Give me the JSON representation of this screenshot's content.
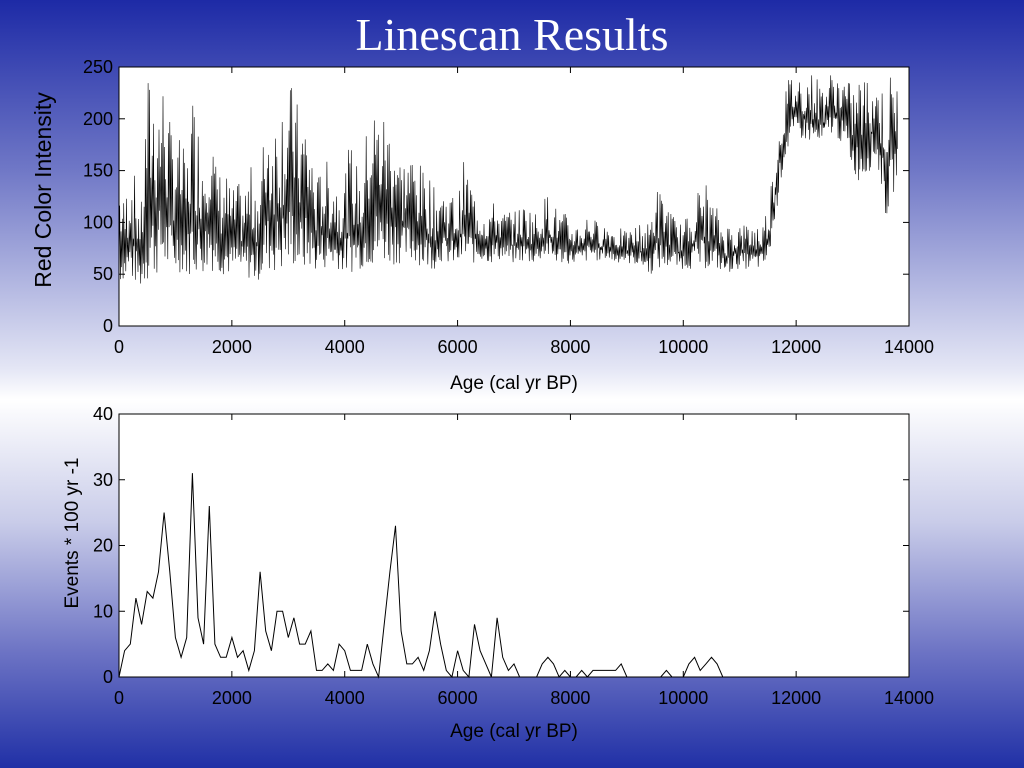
{
  "slide": {
    "title": "Linescan Results"
  },
  "chart_data": [
    {
      "type": "line",
      "title": "",
      "xlabel": "Age (cal yr BP)",
      "ylabel": "Red Color Intensity",
      "xlim": [
        0,
        14000
      ],
      "ylim": [
        0,
        250
      ],
      "xticks": [
        0,
        2000,
        4000,
        6000,
        8000,
        10000,
        12000,
        14000
      ],
      "yticks": [
        0,
        50,
        100,
        150,
        200,
        250
      ],
      "grid": false,
      "legend": "none",
      "line_color": "#000000",
      "series": [
        {
          "x": [
            0,
            100,
            200,
            300,
            400,
            500,
            600,
            700,
            800,
            900,
            1000,
            1100,
            1200,
            1300,
            1400,
            1500,
            1600,
            1700,
            1800,
            1900,
            2000,
            2100,
            2200,
            2300,
            2400,
            2500,
            2600,
            2700,
            2800,
            2900,
            3000,
            3100,
            3200,
            3300,
            3400,
            3500,
            3600,
            3700,
            3800,
            3900,
            4000,
            4100,
            4200,
            4300,
            4400,
            4500,
            4600,
            4700,
            4800,
            4900,
            5000,
            5100,
            5200,
            5300,
            5400,
            5500,
            5600,
            5700,
            5800,
            5900,
            6000,
            6100,
            6200,
            6300,
            6400,
            6500,
            6600,
            6700,
            6800,
            6900,
            7000,
            7100,
            7200,
            7300,
            7400,
            7500,
            7600,
            7700,
            7800,
            7900,
            8000,
            8100,
            8200,
            8300,
            8400,
            8500,
            8600,
            8700,
            8800,
            8900,
            9000,
            9100,
            9200,
            9300,
            9400,
            9500,
            9600,
            9700,
            9800,
            9900,
            10000,
            10100,
            10200,
            10300,
            10400,
            10500,
            10600,
            10700,
            10800,
            10900,
            11000,
            11100,
            11200,
            11300,
            11400,
            11500,
            11600,
            11700,
            11800,
            11900,
            12000,
            12100,
            12200,
            12300,
            12400,
            12500,
            12600,
            12700,
            12800,
            12900,
            13000,
            13100,
            13200,
            13300,
            13400,
            13500,
            13600,
            13700,
            13800
          ],
          "low": [
            40,
            45,
            42,
            40,
            35,
            40,
            45,
            50,
            50,
            48,
            50,
            52,
            48,
            50,
            50,
            50,
            50,
            55,
            50,
            48,
            50,
            50,
            48,
            45,
            40,
            45,
            50,
            52,
            50,
            50,
            55,
            55,
            52,
            52,
            55,
            52,
            55,
            55,
            55,
            55,
            50,
            50,
            55,
            55,
            58,
            55,
            58,
            60,
            58,
            60,
            60,
            60,
            60,
            60,
            55,
            55,
            55,
            62,
            60,
            58,
            58,
            60,
            62,
            60,
            62,
            62,
            60,
            62,
            65,
            60,
            60,
            62,
            60,
            60,
            60,
            65,
            65,
            60,
            60,
            60,
            60,
            60,
            60,
            62,
            65,
            62,
            65,
            62,
            60,
            62,
            60,
            60,
            58,
            55,
            50,
            50,
            55,
            55,
            58,
            55,
            55,
            55,
            55,
            55,
            55,
            55,
            55,
            50,
            50,
            55,
            55,
            55,
            55,
            55,
            55,
            60,
            90,
            130,
            160,
            175,
            180,
            180,
            178,
            175,
            170,
            175,
            185,
            185,
            175,
            170,
            150,
            140,
            140,
            150,
            160,
            140,
            100,
            120,
            150
          ],
          "high": [
            150,
            120,
            170,
            140,
            120,
            245,
            240,
            230,
            245,
            200,
            190,
            180,
            160,
            230,
            200,
            180,
            235,
            160,
            150,
            150,
            130,
            140,
            130,
            150,
            160,
            130,
            220,
            200,
            210,
            230,
            230,
            240,
            200,
            210,
            180,
            140,
            160,
            160,
            150,
            140,
            150,
            180,
            160,
            140,
            200,
            220,
            210,
            210,
            200,
            200,
            160,
            170,
            170,
            160,
            150,
            150,
            130,
            140,
            130,
            130,
            120,
            160,
            150,
            130,
            120,
            115,
            120,
            120,
            110,
            115,
            110,
            115,
            120,
            115,
            110,
            120,
            130,
            120,
            110,
            110,
            100,
            100,
            100,
            110,
            105,
            100,
            100,
            100,
            95,
            95,
            90,
            95,
            100,
            100,
            100,
            140,
            130,
            125,
            110,
            100,
            100,
            110,
            130,
            135,
            140,
            120,
            115,
            100,
            100,
            100,
            100,
            100,
            100,
            100,
            100,
            120,
            160,
            200,
            230,
            245,
            245,
            245,
            245,
            245,
            240,
            235,
            245,
            245,
            245,
            240,
            230,
            245,
            240,
            245,
            245,
            230,
            240,
            245,
            240
          ]
        }
      ]
    },
    {
      "type": "line",
      "title": "",
      "xlabel": "Age (cal yr BP)",
      "ylabel": "Events * 100 yr -1",
      "xlim": [
        0,
        14000
      ],
      "ylim": [
        0,
        40
      ],
      "xticks": [
        0,
        2000,
        4000,
        6000,
        8000,
        10000,
        12000,
        14000
      ],
      "yticks": [
        0,
        10,
        20,
        30,
        40
      ],
      "grid": false,
      "legend": "none",
      "line_color": "#000000",
      "series": [
        {
          "x": [
            0,
            100,
            200,
            300,
            400,
            500,
            600,
            700,
            800,
            900,
            1000,
            1100,
            1200,
            1300,
            1400,
            1500,
            1600,
            1700,
            1800,
            1900,
            2000,
            2100,
            2200,
            2300,
            2400,
            2500,
            2600,
            2700,
            2800,
            2900,
            3000,
            3100,
            3200,
            3300,
            3400,
            3500,
            3600,
            3700,
            3800,
            3900,
            4000,
            4100,
            4200,
            4300,
            4400,
            4500,
            4600,
            4700,
            4800,
            4900,
            5000,
            5100,
            5200,
            5300,
            5400,
            5500,
            5600,
            5700,
            5800,
            5900,
            6000,
            6100,
            6200,
            6300,
            6400,
            6500,
            6600,
            6700,
            6800,
            6900,
            7000,
            7100,
            7200,
            7300,
            7400,
            7500,
            7600,
            7700,
            7800,
            7900,
            8000,
            8100,
            8200,
            8300,
            8400,
            8500,
            8600,
            8700,
            8800,
            8900,
            9000,
            9100,
            9200,
            9300,
            9400,
            9500,
            9600,
            9700,
            9800,
            9900,
            10000,
            10100,
            10200,
            10300,
            10400,
            10500,
            10600,
            10700,
            10800,
            10900,
            11000,
            11500,
            12000,
            12500,
            13000,
            13500,
            13800
          ],
          "y": [
            0,
            4,
            5,
            12,
            8,
            13,
            12,
            16,
            25,
            16,
            6,
            3,
            6,
            31,
            9,
            5,
            26,
            5,
            3,
            3,
            6,
            3,
            4,
            1,
            4,
            16,
            7,
            4,
            10,
            10,
            6,
            9,
            5,
            5,
            7,
            1,
            1,
            2,
            1,
            5,
            4,
            1,
            1,
            1,
            5,
            2,
            0,
            8,
            16,
            23,
            7,
            2,
            2,
            3,
            1,
            4,
            10,
            5,
            1,
            0,
            4,
            1,
            0,
            8,
            4,
            2,
            0,
            9,
            3,
            1,
            2,
            0,
            0,
            0,
            0,
            2,
            3,
            2,
            0,
            1,
            0,
            0,
            1,
            0,
            1,
            1,
            1,
            1,
            1,
            2,
            0,
            0,
            0,
            0,
            0,
            0,
            0,
            1,
            0,
            0,
            0,
            2,
            3,
            1,
            2,
            3,
            2,
            0,
            0,
            0,
            0,
            0,
            0,
            0,
            0,
            0,
            0
          ]
        }
      ]
    }
  ]
}
